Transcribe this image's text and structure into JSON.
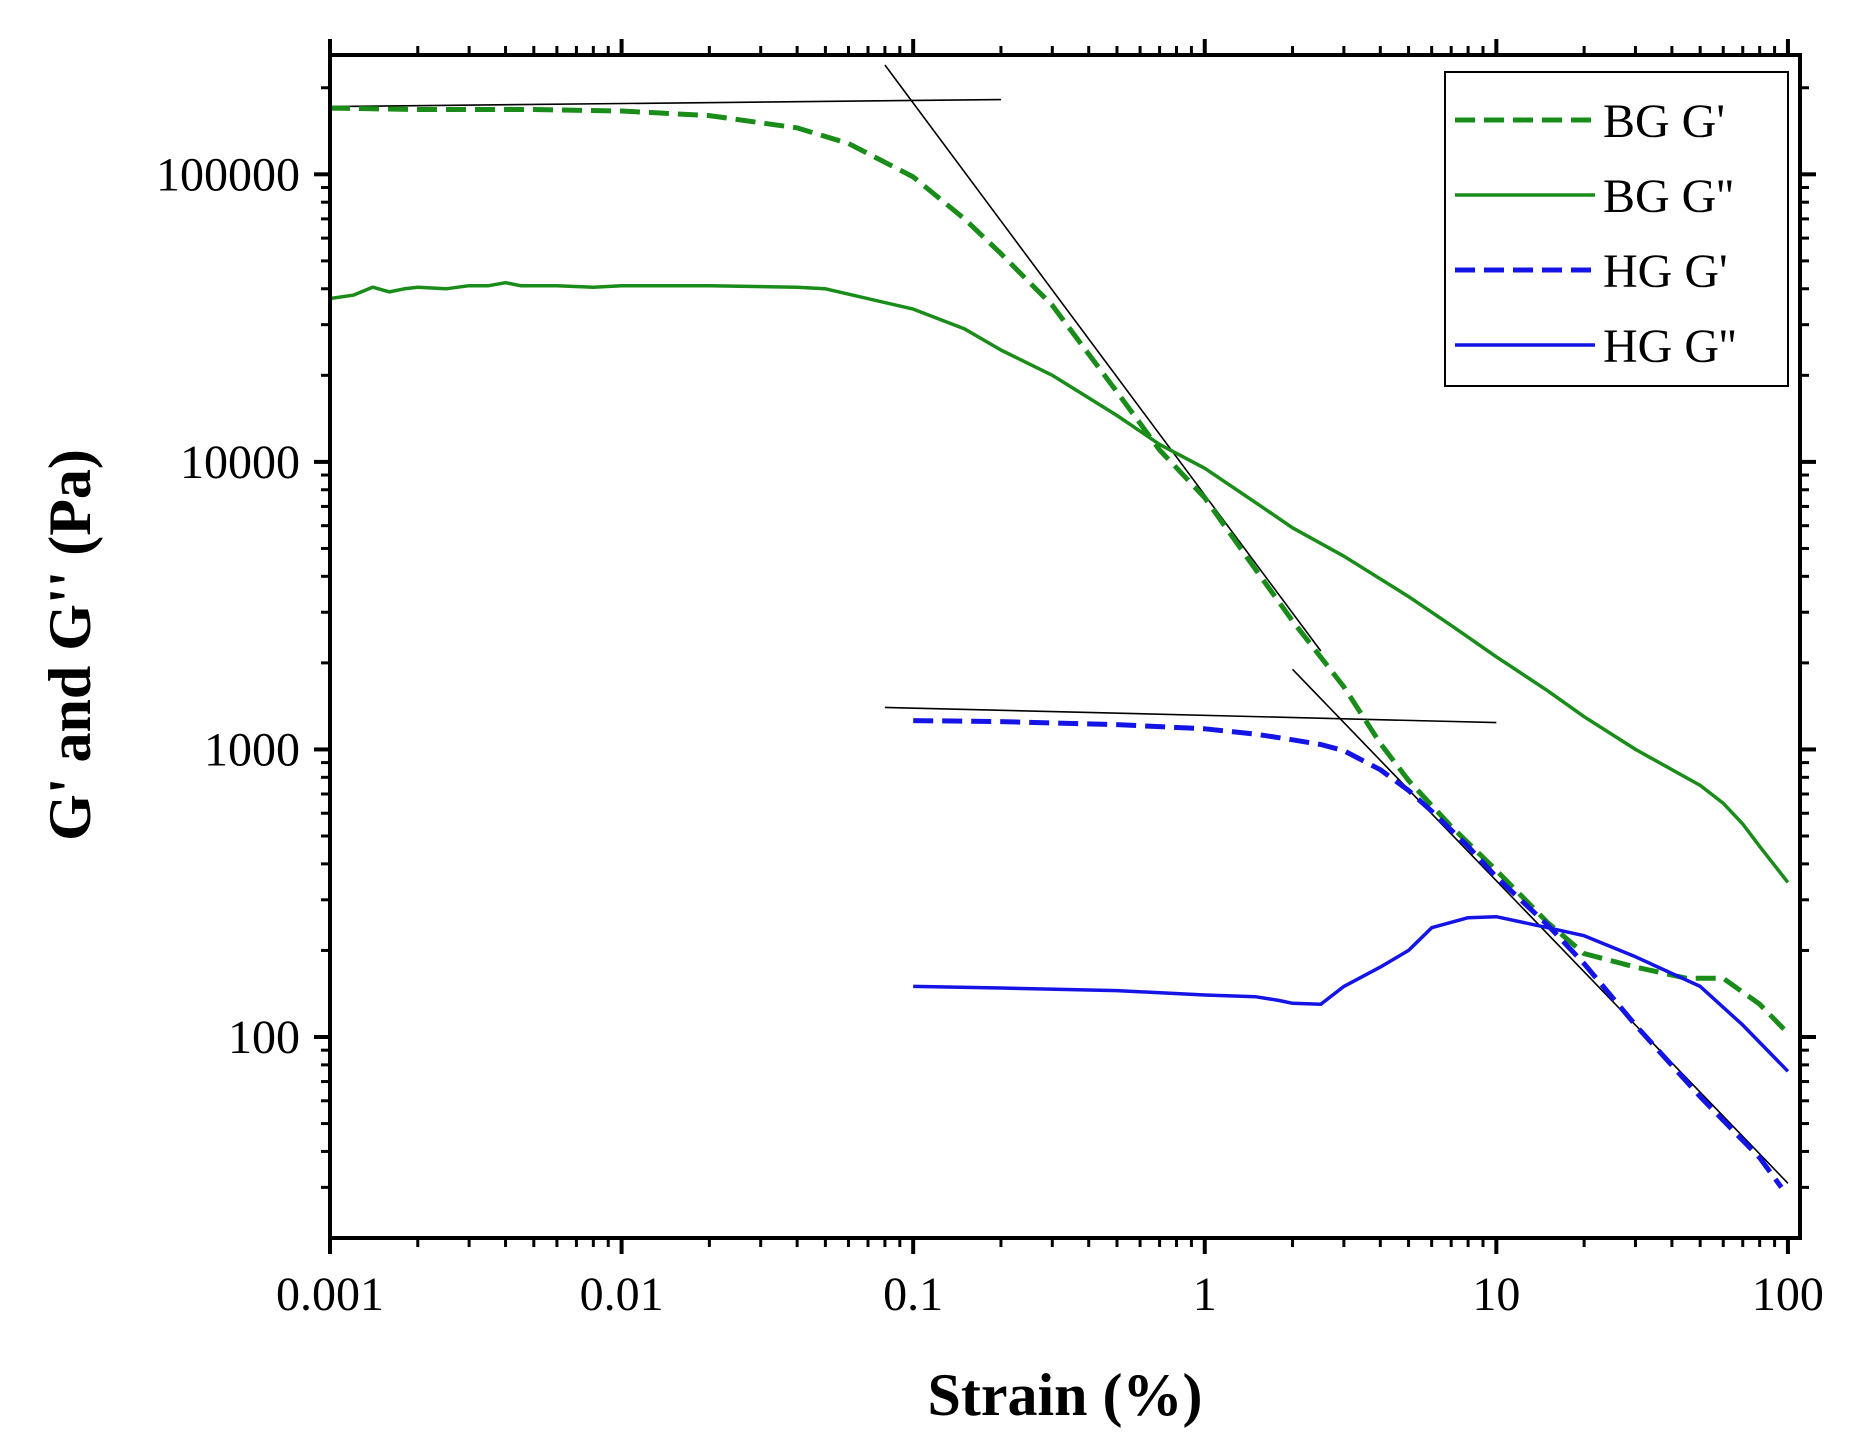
{
  "chart_data": {
    "type": "line",
    "title": "",
    "xlabel": "Strain (%)",
    "ylabel": "G' and G'' (Pa)",
    "xscale": "log",
    "yscale": "log",
    "xlim": [
      0.001,
      110
    ],
    "ylim": [
      20,
      260000
    ],
    "xticks": [
      {
        "value": 0.001,
        "label": "0.001"
      },
      {
        "value": 0.01,
        "label": "0.01"
      },
      {
        "value": 0.1,
        "label": "0.1"
      },
      {
        "value": 1,
        "label": "1"
      },
      {
        "value": 10,
        "label": "10"
      },
      {
        "value": 100,
        "label": "100"
      }
    ],
    "yticks": [
      {
        "value": 100,
        "label": "100"
      },
      {
        "value": 1000,
        "label": "1000"
      },
      {
        "value": 10000,
        "label": "10000"
      },
      {
        "value": 100000,
        "label": "100000"
      }
    ],
    "legend_position": "top-right",
    "series": [
      {
        "name": "BG G'",
        "color": "#1a8c1a",
        "style": "dashed",
        "points": [
          [
            0.001,
            170000
          ],
          [
            0.002,
            168000
          ],
          [
            0.005,
            168000
          ],
          [
            0.01,
            166000
          ],
          [
            0.02,
            160000
          ],
          [
            0.04,
            145000
          ],
          [
            0.06,
            128000
          ],
          [
            0.1,
            98000
          ],
          [
            0.15,
            70000
          ],
          [
            0.2,
            53000
          ],
          [
            0.3,
            35000
          ],
          [
            0.5,
            17500
          ],
          [
            0.7,
            11000
          ],
          [
            1,
            7500
          ],
          [
            1.5,
            4200
          ],
          [
            2,
            2800
          ],
          [
            3,
            1650
          ],
          [
            4,
            1050
          ],
          [
            5,
            780
          ],
          [
            7,
            540
          ],
          [
            10,
            380
          ],
          [
            15,
            250
          ],
          [
            20,
            195
          ],
          [
            30,
            175
          ],
          [
            45,
            160
          ],
          [
            60,
            160
          ],
          [
            80,
            130
          ],
          [
            100,
            103
          ]
        ]
      },
      {
        "name": "BG G''",
        "color": "#1a8c1a",
        "style": "solid",
        "points": [
          [
            0.001,
            37000
          ],
          [
            0.0012,
            38000
          ],
          [
            0.0014,
            40500
          ],
          [
            0.0016,
            39000
          ],
          [
            0.0018,
            40000
          ],
          [
            0.002,
            40500
          ],
          [
            0.0025,
            40000
          ],
          [
            0.003,
            41000
          ],
          [
            0.0035,
            41000
          ],
          [
            0.004,
            42000
          ],
          [
            0.0045,
            41000
          ],
          [
            0.006,
            41000
          ],
          [
            0.008,
            40500
          ],
          [
            0.01,
            41000
          ],
          [
            0.02,
            41000
          ],
          [
            0.04,
            40500
          ],
          [
            0.05,
            40000
          ],
          [
            0.1,
            34000
          ],
          [
            0.15,
            29000
          ],
          [
            0.2,
            24500
          ],
          [
            0.3,
            20000
          ],
          [
            0.5,
            14500
          ],
          [
            0.7,
            11500
          ],
          [
            1,
            9500
          ],
          [
            1.5,
            7200
          ],
          [
            2,
            5900
          ],
          [
            3,
            4700
          ],
          [
            5,
            3400
          ],
          [
            7,
            2700
          ],
          [
            10,
            2100
          ],
          [
            15,
            1600
          ],
          [
            20,
            1300
          ],
          [
            30,
            1000
          ],
          [
            50,
            750
          ],
          [
            60,
            650
          ],
          [
            70,
            550
          ],
          [
            80,
            460
          ],
          [
            100,
            345
          ]
        ]
      },
      {
        "name": "HG G'",
        "color": "#1414e6",
        "style": "dashed",
        "points": [
          [
            0.1,
            1260
          ],
          [
            0.2,
            1250
          ],
          [
            0.5,
            1220
          ],
          [
            1,
            1180
          ],
          [
            1.5,
            1130
          ],
          [
            2,
            1080
          ],
          [
            2.5,
            1040
          ],
          [
            3,
            990
          ],
          [
            4,
            850
          ],
          [
            5,
            720
          ],
          [
            6,
            610
          ],
          [
            8,
            460
          ],
          [
            10,
            360
          ],
          [
            15,
            245
          ],
          [
            20,
            180
          ],
          [
            30,
            110
          ],
          [
            50,
            62
          ],
          [
            80,
            38
          ],
          [
            95,
            30
          ]
        ]
      },
      {
        "name": "HG G''",
        "color": "#1414e6",
        "style": "solid",
        "points": [
          [
            0.1,
            150
          ],
          [
            0.2,
            148
          ],
          [
            0.5,
            145
          ],
          [
            1,
            140
          ],
          [
            1.5,
            138
          ],
          [
            1.8,
            134
          ],
          [
            2,
            131
          ],
          [
            2.5,
            130
          ],
          [
            3,
            150
          ],
          [
            4,
            175
          ],
          [
            5,
            200
          ],
          [
            6,
            240
          ],
          [
            8,
            260
          ],
          [
            10,
            262
          ],
          [
            15,
            240
          ],
          [
            20,
            225
          ],
          [
            30,
            190
          ],
          [
            50,
            150
          ],
          [
            70,
            110
          ],
          [
            100,
            76
          ]
        ]
      }
    ],
    "guide_lines": [
      {
        "name": "bg-plateau-guide",
        "from": [
          0.001,
          172000
        ],
        "to": [
          0.2,
          182000
        ]
      },
      {
        "name": "bg-slope-guide",
        "from": [
          0.08,
          240000
        ],
        "to": [
          2.5,
          2200
        ]
      },
      {
        "name": "hg-plateau-guide",
        "from": [
          0.08,
          1400
        ],
        "to": [
          10,
          1240
        ]
      },
      {
        "name": "hg-slope-guide",
        "from": [
          2,
          1900
        ],
        "to": [
          100,
          31
        ]
      }
    ]
  }
}
